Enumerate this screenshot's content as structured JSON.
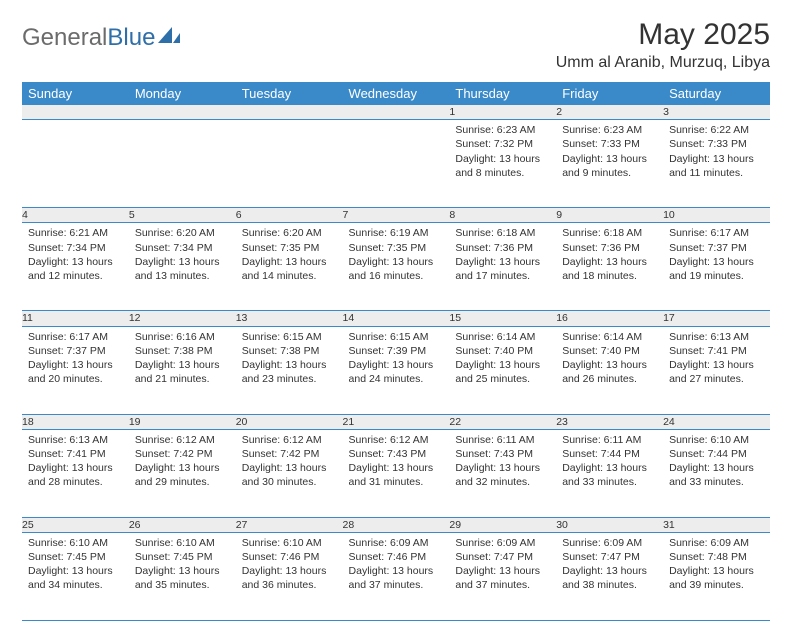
{
  "logo": {
    "general": "General",
    "blue": "Blue"
  },
  "title": "May 2025",
  "location": "Umm al Aranib, Murzuq, Libya",
  "headers": [
    "Sunday",
    "Monday",
    "Tuesday",
    "Wednesday",
    "Thursday",
    "Friday",
    "Saturday"
  ],
  "colors": {
    "header_bg": "#3a89c9",
    "header_fg": "#ffffff",
    "daynum_bg": "#ededed",
    "rule": "#3a89c9",
    "logo_gray": "#6b6b6b",
    "logo_blue": "#2f6fa9",
    "text": "#333333"
  },
  "weeks": [
    [
      {
        "n": "",
        "lines": []
      },
      {
        "n": "",
        "lines": []
      },
      {
        "n": "",
        "lines": []
      },
      {
        "n": "",
        "lines": []
      },
      {
        "n": "1",
        "lines": [
          "Sunrise: 6:23 AM",
          "Sunset: 7:32 PM",
          "Daylight: 13 hours and 8 minutes."
        ]
      },
      {
        "n": "2",
        "lines": [
          "Sunrise: 6:23 AM",
          "Sunset: 7:33 PM",
          "Daylight: 13 hours and 9 minutes."
        ]
      },
      {
        "n": "3",
        "lines": [
          "Sunrise: 6:22 AM",
          "Sunset: 7:33 PM",
          "Daylight: 13 hours and 11 minutes."
        ]
      }
    ],
    [
      {
        "n": "4",
        "lines": [
          "Sunrise: 6:21 AM",
          "Sunset: 7:34 PM",
          "Daylight: 13 hours and 12 minutes."
        ]
      },
      {
        "n": "5",
        "lines": [
          "Sunrise: 6:20 AM",
          "Sunset: 7:34 PM",
          "Daylight: 13 hours and 13 minutes."
        ]
      },
      {
        "n": "6",
        "lines": [
          "Sunrise: 6:20 AM",
          "Sunset: 7:35 PM",
          "Daylight: 13 hours and 14 minutes."
        ]
      },
      {
        "n": "7",
        "lines": [
          "Sunrise: 6:19 AM",
          "Sunset: 7:35 PM",
          "Daylight: 13 hours and 16 minutes."
        ]
      },
      {
        "n": "8",
        "lines": [
          "Sunrise: 6:18 AM",
          "Sunset: 7:36 PM",
          "Daylight: 13 hours and 17 minutes."
        ]
      },
      {
        "n": "9",
        "lines": [
          "Sunrise: 6:18 AM",
          "Sunset: 7:36 PM",
          "Daylight: 13 hours and 18 minutes."
        ]
      },
      {
        "n": "10",
        "lines": [
          "Sunrise: 6:17 AM",
          "Sunset: 7:37 PM",
          "Daylight: 13 hours and 19 minutes."
        ]
      }
    ],
    [
      {
        "n": "11",
        "lines": [
          "Sunrise: 6:17 AM",
          "Sunset: 7:37 PM",
          "Daylight: 13 hours and 20 minutes."
        ]
      },
      {
        "n": "12",
        "lines": [
          "Sunrise: 6:16 AM",
          "Sunset: 7:38 PM",
          "Daylight: 13 hours and 21 minutes."
        ]
      },
      {
        "n": "13",
        "lines": [
          "Sunrise: 6:15 AM",
          "Sunset: 7:38 PM",
          "Daylight: 13 hours and 23 minutes."
        ]
      },
      {
        "n": "14",
        "lines": [
          "Sunrise: 6:15 AM",
          "Sunset: 7:39 PM",
          "Daylight: 13 hours and 24 minutes."
        ]
      },
      {
        "n": "15",
        "lines": [
          "Sunrise: 6:14 AM",
          "Sunset: 7:40 PM",
          "Daylight: 13 hours and 25 minutes."
        ]
      },
      {
        "n": "16",
        "lines": [
          "Sunrise: 6:14 AM",
          "Sunset: 7:40 PM",
          "Daylight: 13 hours and 26 minutes."
        ]
      },
      {
        "n": "17",
        "lines": [
          "Sunrise: 6:13 AM",
          "Sunset: 7:41 PM",
          "Daylight: 13 hours and 27 minutes."
        ]
      }
    ],
    [
      {
        "n": "18",
        "lines": [
          "Sunrise: 6:13 AM",
          "Sunset: 7:41 PM",
          "Daylight: 13 hours and 28 minutes."
        ]
      },
      {
        "n": "19",
        "lines": [
          "Sunrise: 6:12 AM",
          "Sunset: 7:42 PM",
          "Daylight: 13 hours and 29 minutes."
        ]
      },
      {
        "n": "20",
        "lines": [
          "Sunrise: 6:12 AM",
          "Sunset: 7:42 PM",
          "Daylight: 13 hours and 30 minutes."
        ]
      },
      {
        "n": "21",
        "lines": [
          "Sunrise: 6:12 AM",
          "Sunset: 7:43 PM",
          "Daylight: 13 hours and 31 minutes."
        ]
      },
      {
        "n": "22",
        "lines": [
          "Sunrise: 6:11 AM",
          "Sunset: 7:43 PM",
          "Daylight: 13 hours and 32 minutes."
        ]
      },
      {
        "n": "23",
        "lines": [
          "Sunrise: 6:11 AM",
          "Sunset: 7:44 PM",
          "Daylight: 13 hours and 33 minutes."
        ]
      },
      {
        "n": "24",
        "lines": [
          "Sunrise: 6:10 AM",
          "Sunset: 7:44 PM",
          "Daylight: 13 hours and 33 minutes."
        ]
      }
    ],
    [
      {
        "n": "25",
        "lines": [
          "Sunrise: 6:10 AM",
          "Sunset: 7:45 PM",
          "Daylight: 13 hours and 34 minutes."
        ]
      },
      {
        "n": "26",
        "lines": [
          "Sunrise: 6:10 AM",
          "Sunset: 7:45 PM",
          "Daylight: 13 hours and 35 minutes."
        ]
      },
      {
        "n": "27",
        "lines": [
          "Sunrise: 6:10 AM",
          "Sunset: 7:46 PM",
          "Daylight: 13 hours and 36 minutes."
        ]
      },
      {
        "n": "28",
        "lines": [
          "Sunrise: 6:09 AM",
          "Sunset: 7:46 PM",
          "Daylight: 13 hours and 37 minutes."
        ]
      },
      {
        "n": "29",
        "lines": [
          "Sunrise: 6:09 AM",
          "Sunset: 7:47 PM",
          "Daylight: 13 hours and 37 minutes."
        ]
      },
      {
        "n": "30",
        "lines": [
          "Sunrise: 6:09 AM",
          "Sunset: 7:47 PM",
          "Daylight: 13 hours and 38 minutes."
        ]
      },
      {
        "n": "31",
        "lines": [
          "Sunrise: 6:09 AM",
          "Sunset: 7:48 PM",
          "Daylight: 13 hours and 39 minutes."
        ]
      }
    ]
  ]
}
